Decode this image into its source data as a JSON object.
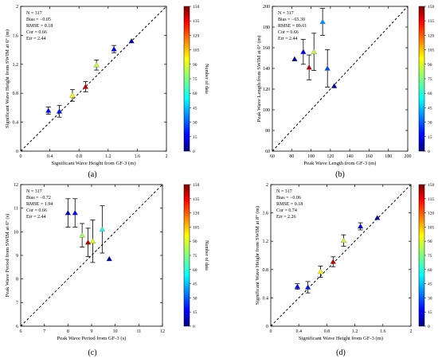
{
  "colorbar": {
    "label": "Number of data",
    "ticks": [
      "0",
      "15",
      "30",
      "45",
      "60",
      "75",
      "90",
      "105",
      "120",
      "135",
      "150"
    ],
    "min": 0,
    "max": 150,
    "colors": [
      "#00007f",
      "#0000ff",
      "#007fff",
      "#00ffff",
      "#7fff7f",
      "#ffff00",
      "#ff7f00",
      "#ff0000",
      "#7f0000"
    ]
  },
  "chart_data": [
    {
      "type": "scatter",
      "panel": "(a)",
      "xlabel": "Significant Wave Height from GF-3 (m)",
      "ylabel": "Significant Wave Height from SWIM at 6° (m)",
      "xlim": [
        0,
        2
      ],
      "ylim": [
        0,
        2
      ],
      "xticks": [
        0,
        0.4,
        0.8,
        1.2,
        1.6,
        2
      ],
      "yticks": [
        0,
        0.4,
        0.8,
        1.2,
        1.6,
        2
      ],
      "xtick_labels": [
        "0",
        "0.4",
        "0.8",
        "1.2",
        "1.6",
        "2"
      ],
      "ytick_labels": [
        "0",
        "0.4",
        "0.8",
        "1.2",
        "1.6",
        "2"
      ],
      "stats": [
        "N = 317",
        "Bias = −0.05",
        "RMSE = 0.18",
        "Cor = 0.66",
        "Err = 2.44"
      ],
      "points": [
        {
          "x": 0.38,
          "y": 0.56,
          "err": 0.05,
          "n": 20
        },
        {
          "x": 0.53,
          "y": 0.55,
          "err": 0.08,
          "n": 22
        },
        {
          "x": 0.71,
          "y": 0.77,
          "err": 0.08,
          "n": 95
        },
        {
          "x": 0.89,
          "y": 0.89,
          "err": 0.07,
          "n": 140
        },
        {
          "x": 1.04,
          "y": 1.19,
          "err": 0.07,
          "n": 85
        },
        {
          "x": 1.28,
          "y": 1.41,
          "err": 0.05,
          "n": 18
        },
        {
          "x": 1.52,
          "y": 1.52,
          "err": 0,
          "n": 5
        }
      ]
    },
    {
      "type": "scatter",
      "panel": "(b)",
      "xlabel": "Peak Wave Length from GF-3 (m)",
      "ylabel": "Peak Wave Length from SWIM at 6° (m)",
      "xlim": [
        60,
        200
      ],
      "ylim": [
        60,
        200
      ],
      "xticks": [
        60,
        80,
        100,
        120,
        140,
        160,
        180,
        200
      ],
      "yticks": [
        60,
        80,
        100,
        120,
        140,
        160,
        180,
        200
      ],
      "xtick_labels": [
        "60",
        "80",
        "100",
        "120",
        "140",
        "160",
        "180",
        "200"
      ],
      "ytick_labels": [
        "60",
        "80",
        "100",
        "120",
        "140",
        "160",
        "180",
        "200"
      ],
      "stats": [
        "N = 317",
        "Bias = −65.30",
        "RMSE = 89.61",
        "Cor = 0.66",
        "Err = 2.44"
      ],
      "points": [
        {
          "x": 83,
          "y": 149,
          "err": 0,
          "n": 5
        },
        {
          "x": 92,
          "y": 156,
          "err": 12,
          "n": 18
        },
        {
          "x": 98,
          "y": 141,
          "err": 12,
          "n": 140
        },
        {
          "x": 103,
          "y": 156,
          "err": 18,
          "n": 85
        },
        {
          "x": 112,
          "y": 185,
          "err": 13,
          "n": 40
        },
        {
          "x": 117,
          "y": 140,
          "err": 18,
          "n": 30
        },
        {
          "x": 124,
          "y": 123,
          "err": 0,
          "n": 8
        }
      ]
    },
    {
      "type": "scatter",
      "panel": "(c)",
      "xlabel": "Peak Wave Period from GF-3 (s)",
      "ylabel": "Peak Wave Period from SWIM at 6° (s)",
      "xlim": [
        6,
        12
      ],
      "ylim": [
        6,
        12
      ],
      "xticks": [
        6,
        7,
        8,
        9,
        10,
        11,
        12
      ],
      "yticks": [
        6,
        7,
        8,
        9,
        10,
        11,
        12
      ],
      "xtick_labels": [
        "6",
        "7",
        "8",
        "9",
        "10",
        "11",
        "12"
      ],
      "ytick_labels": [
        "6",
        "7",
        "8",
        "9",
        "10",
        "11",
        "12"
      ],
      "stats": [
        "N = 317",
        "Bias = −0.72",
        "RMSE = 1.94",
        "Cor = 0.66",
        "Err = 2.44"
      ],
      "points": [
        {
          "x": 8.0,
          "y": 10.8,
          "err": 0.6,
          "n": 12
        },
        {
          "x": 8.3,
          "y": 10.8,
          "err": 0.6,
          "n": 20
        },
        {
          "x": 8.6,
          "y": 9.85,
          "err": 0.5,
          "n": 80
        },
        {
          "x": 8.85,
          "y": 9.55,
          "err": 0.6,
          "n": 140
        },
        {
          "x": 9.05,
          "y": 9.6,
          "err": 0.9,
          "n": 90
        },
        {
          "x": 9.45,
          "y": 10.1,
          "err": 1.0,
          "n": 60
        },
        {
          "x": 9.75,
          "y": 8.85,
          "err": 0,
          "n": 5
        }
      ]
    },
    {
      "type": "scatter",
      "panel": "(d)",
      "xlabel": "Significant Wave Height from GF-3 (m)",
      "ylabel": "Significant Wave Height from SWIM at 8° (m)",
      "xlim": [
        0,
        2
      ],
      "ylim": [
        0,
        2
      ],
      "xticks": [
        0,
        0.4,
        0.8,
        1.2,
        1.6,
        2
      ],
      "yticks": [
        0,
        0.4,
        0.8,
        1.2,
        1.6,
        2
      ],
      "xtick_labels": [
        "0",
        "0.4",
        "0.8",
        "1.2",
        "1.6",
        "2"
      ],
      "ytick_labels": [
        "0",
        "0.4",
        "0.8",
        "1.2",
        "1.6",
        "2"
      ],
      "stats": [
        "N = 317",
        "Bias = −0.06",
        "RMSE = 0.18",
        "Cor = 0.74",
        "Err = 2.26"
      ],
      "points": [
        {
          "x": 0.38,
          "y": 0.56,
          "err": 0.04,
          "n": 20
        },
        {
          "x": 0.53,
          "y": 0.55,
          "err": 0.08,
          "n": 22
        },
        {
          "x": 0.71,
          "y": 0.77,
          "err": 0.08,
          "n": 95
        },
        {
          "x": 0.89,
          "y": 0.91,
          "err": 0.07,
          "n": 140
        },
        {
          "x": 1.04,
          "y": 1.21,
          "err": 0.08,
          "n": 85
        },
        {
          "x": 1.28,
          "y": 1.41,
          "err": 0.05,
          "n": 18
        },
        {
          "x": 1.52,
          "y": 1.53,
          "err": 0,
          "n": 5
        }
      ]
    }
  ]
}
